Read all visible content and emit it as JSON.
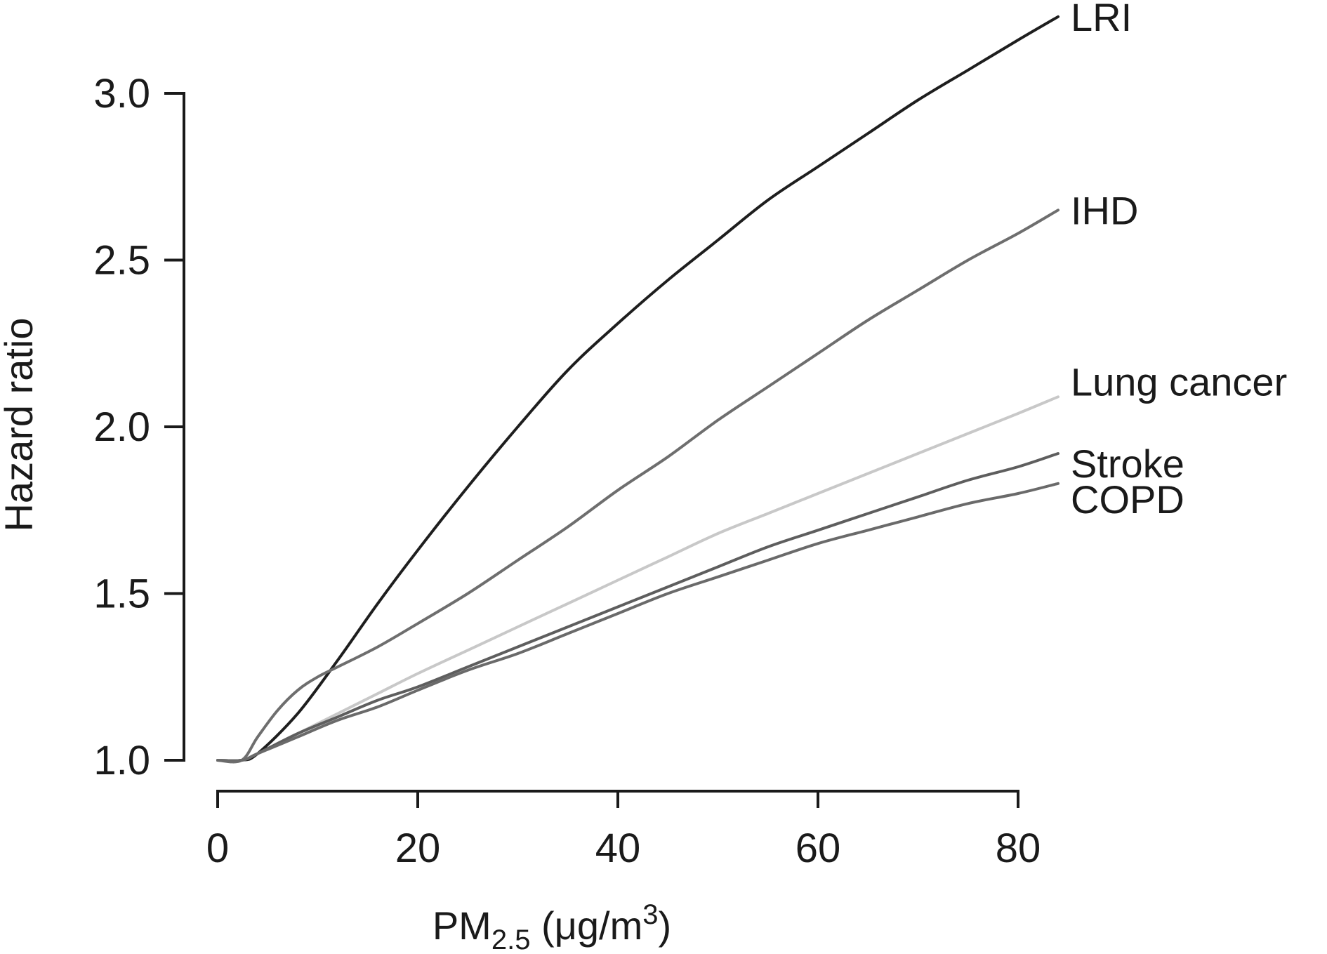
{
  "chart_data": {
    "type": "line",
    "title": "",
    "xlabel": {
      "main": "PM",
      "sub": "2.5",
      "unit_open": " (μg/m",
      "sup": "3",
      "unit_close": ")"
    },
    "ylabel": "Hazard ratio",
    "xlim": [
      0,
      80
    ],
    "ylim": [
      1.0,
      3.0
    ],
    "xticks": [
      "0",
      "20",
      "40",
      "60",
      "80"
    ],
    "yticks": [
      "1.0",
      "1.5",
      "2.0",
      "2.5",
      "3.0"
    ],
    "grid": false,
    "legend": "direct labels at line ends (right)",
    "series": [
      {
        "name": "LRI",
        "color": "#1e1e1e",
        "x": [
          0,
          2.4,
          4,
          8,
          12,
          16,
          20,
          25,
          30,
          35,
          40,
          45,
          50,
          55,
          60,
          65,
          70,
          75,
          80,
          84
        ],
        "y": [
          1.0,
          1.0,
          1.02,
          1.14,
          1.3,
          1.47,
          1.63,
          1.82,
          2.0,
          2.17,
          2.31,
          2.44,
          2.56,
          2.68,
          2.78,
          2.88,
          2.98,
          3.07,
          3.16,
          3.23
        ]
      },
      {
        "name": "IHD",
        "color": "#6e6e6e",
        "x": [
          0,
          2.4,
          4,
          6,
          8,
          10,
          12,
          16,
          20,
          25,
          30,
          35,
          40,
          45,
          50,
          55,
          60,
          65,
          70,
          75,
          80,
          84
        ],
        "y": [
          1.0,
          1.0,
          1.07,
          1.15,
          1.21,
          1.25,
          1.28,
          1.34,
          1.41,
          1.5,
          1.6,
          1.7,
          1.81,
          1.91,
          2.02,
          2.12,
          2.22,
          2.32,
          2.41,
          2.5,
          2.58,
          2.65
        ]
      },
      {
        "name": "Lung cancer",
        "color": "#c8c8c8",
        "x": [
          0,
          2.4,
          4,
          8,
          12,
          16,
          20,
          25,
          30,
          35,
          40,
          45,
          50,
          55,
          60,
          65,
          70,
          75,
          80,
          84
        ],
        "y": [
          1.0,
          1.0,
          1.02,
          1.08,
          1.14,
          1.2,
          1.26,
          1.33,
          1.4,
          1.47,
          1.54,
          1.61,
          1.68,
          1.74,
          1.8,
          1.86,
          1.92,
          1.98,
          2.04,
          2.09
        ]
      },
      {
        "name": "Stroke",
        "color": "#5e5e5e",
        "x": [
          0,
          2.4,
          4,
          8,
          12,
          16,
          20,
          25,
          30,
          35,
          40,
          45,
          50,
          55,
          60,
          65,
          70,
          75,
          80,
          84
        ],
        "y": [
          1.0,
          1.0,
          1.02,
          1.08,
          1.13,
          1.18,
          1.22,
          1.28,
          1.34,
          1.4,
          1.46,
          1.52,
          1.58,
          1.64,
          1.69,
          1.74,
          1.79,
          1.84,
          1.88,
          1.92
        ]
      },
      {
        "name": "COPD",
        "color": "#6a6a6a",
        "x": [
          0,
          2.4,
          4,
          8,
          12,
          16,
          20,
          25,
          30,
          35,
          40,
          45,
          50,
          55,
          60,
          65,
          70,
          75,
          80,
          84
        ],
        "y": [
          1.0,
          1.0,
          1.02,
          1.07,
          1.12,
          1.16,
          1.21,
          1.27,
          1.32,
          1.38,
          1.44,
          1.5,
          1.55,
          1.6,
          1.65,
          1.69,
          1.73,
          1.77,
          1.8,
          1.83
        ]
      }
    ]
  }
}
